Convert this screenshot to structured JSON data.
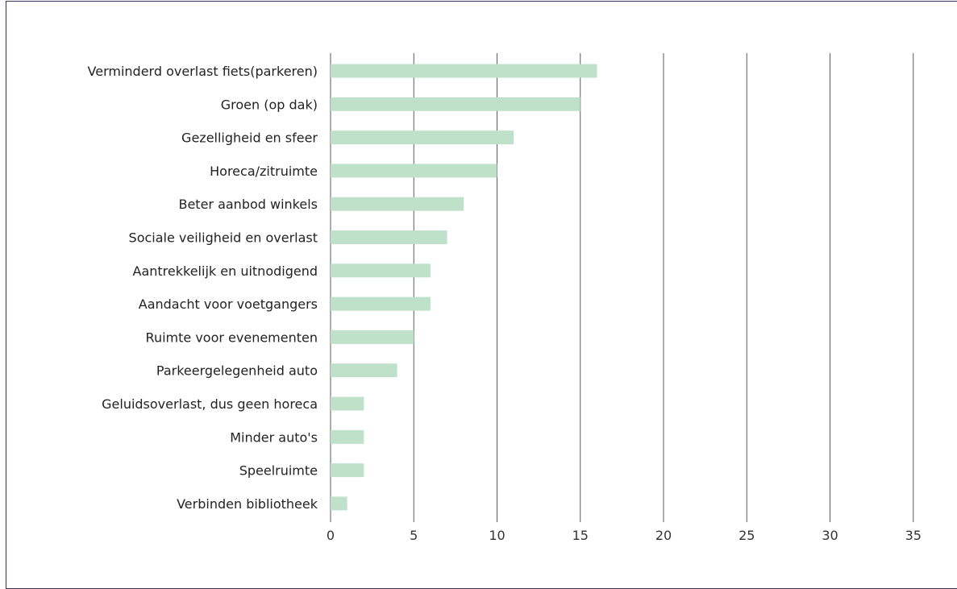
{
  "chart_data": {
    "type": "bar",
    "orientation": "horizontal",
    "categories": [
      "Verminderd overlast fiets(parkeren)",
      "Groen (op dak)",
      "Gezelligheid en sfeer",
      "Horeca/zitruimte",
      "Beter aanbod winkels",
      "Sociale veiligheid en overlast",
      "Aantrekkelijk en uitnodigend",
      "Aandacht voor voetgangers",
      "Ruimte voor evenementen",
      "Parkeergelegenheid auto",
      "Geluidsoverlast, dus geen horeca",
      "Minder auto's",
      "Speelruimte",
      "Verbinden bibliotheek"
    ],
    "values": [
      16,
      15,
      11,
      10,
      8,
      7,
      6,
      6,
      5,
      4,
      2,
      2,
      2,
      1
    ],
    "xlim": [
      0,
      35
    ],
    "xticks": [
      0,
      5,
      10,
      15,
      20,
      25,
      30,
      35
    ],
    "grid": "vertical",
    "bar_color": "#bfe0c9",
    "grid_color": "#5a5a5a",
    "frame_color": "#3b2d5a",
    "title": "",
    "xlabel": "",
    "ylabel": ""
  }
}
